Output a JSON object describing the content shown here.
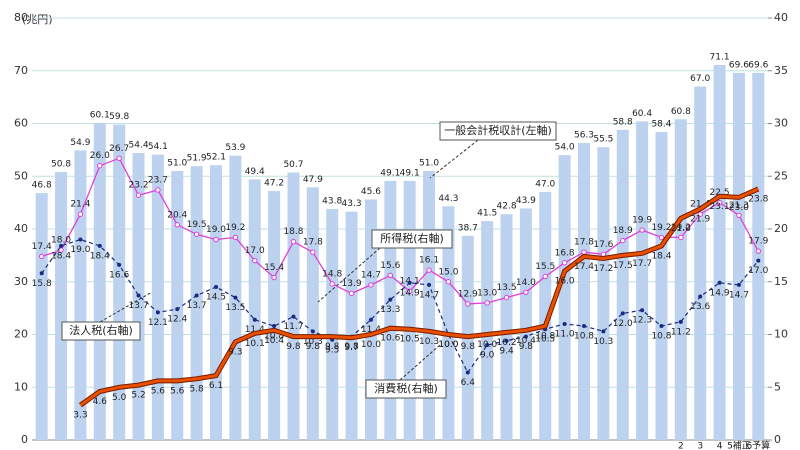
{
  "chart_data": {
    "type": "bar-line",
    "y_unit": "(兆円)",
    "categories": [
      null,
      null,
      null,
      null,
      null,
      null,
      null,
      null,
      null,
      null,
      null,
      null,
      null,
      null,
      null,
      null,
      null,
      null,
      null,
      null,
      null,
      null,
      null,
      null,
      null,
      null,
      null,
      null,
      null,
      null,
      null,
      null,
      null,
      "2",
      "3",
      "4",
      "5補正",
      "6予算"
    ],
    "ylim": [
      0,
      80
    ],
    "yticks": [
      0,
      10,
      20,
      30,
      40,
      50,
      60,
      70,
      80
    ],
    "y2lim": [
      0,
      40
    ],
    "y2ticks": [
      0,
      5,
      10,
      15,
      20,
      25,
      30,
      35,
      40
    ],
    "grid": true,
    "annotations": [
      "一般会計税収計(左軸)",
      "所得税(右軸)",
      "法人税(右軸)",
      "消費税(右軸)"
    ],
    "series": [
      {
        "name": "一般会計税収計",
        "type": "bar",
        "color": "#bcd2ee",
        "values": [
          46.8,
          50.8,
          54.9,
          60.1,
          59.8,
          54.4,
          54.1,
          51.0,
          51.9,
          52.1,
          53.9,
          49.4,
          47.2,
          50.7,
          47.9,
          43.8,
          43.3,
          45.6,
          49.1,
          49.1,
          51.0,
          44.3,
          38.7,
          41.5,
          42.8,
          43.9,
          47.0,
          54.0,
          56.3,
          55.5,
          58.8,
          60.4,
          58.4,
          60.8,
          67.0,
          71.1,
          69.6,
          69.6
        ],
        "value_labels": [
          "46.8",
          "50.8",
          "54.9",
          "60.1",
          "59.8",
          "54.4",
          "54.1",
          "51.0",
          "51.9",
          "52.1",
          "53.9",
          "49.4",
          "47.2",
          "50.7",
          "47.9",
          "43.8",
          "43.3",
          "45.6",
          "49.1",
          "49.1",
          "51.0",
          "44.3",
          "38.7",
          "41.5",
          "42.8",
          "43.9",
          "47.0",
          "54.0",
          "56.3",
          "55.5",
          "58.8",
          "60.4",
          "58.4",
          "60.8",
          "67.0",
          "71.1",
          "69.6",
          "69.6"
        ]
      },
      {
        "name": "所得税",
        "type": "line",
        "axis": "y2",
        "color": "#e040d8",
        "values": [
          17.4,
          18.0,
          21.4,
          26.0,
          26.7,
          23.2,
          23.7,
          20.4,
          19.5,
          19.0,
          19.2,
          17.0,
          15.4,
          18.8,
          17.8,
          14.8,
          13.9,
          14.7,
          15.6,
          14.1,
          16.1,
          15.0,
          12.9,
          13.0,
          13.5,
          14.0,
          15.5,
          16.8,
          17.8,
          17.6,
          18.9,
          19.9,
          19.2,
          19.2,
          21.4,
          22.5,
          21.3,
          17.9
        ],
        "value_labels": [
          "17.4",
          "18.0",
          "21.4",
          "26.0",
          "26.7",
          "23.2",
          "23.7",
          "20.4",
          "19.5",
          "19.0",
          "19.2",
          "17.0",
          "15.4",
          "18.8",
          "17.8",
          "14.8",
          "13.9",
          "14.7",
          "15.6",
          "14.1",
          "16.1",
          "15.0",
          "12.9",
          "13.0",
          "13.5",
          "14.0",
          "15.5",
          "16.8",
          "17.8",
          "17.6",
          "18.9",
          "19.9",
          "19.2",
          "19.2",
          "21.4",
          "22.5",
          "21.3",
          "17.9"
        ]
      },
      {
        "name": "法人税",
        "type": "line",
        "axis": "y2",
        "color": "#1a2a80",
        "values": [
          15.8,
          18.4,
          19.0,
          18.4,
          16.6,
          13.7,
          12.1,
          12.4,
          13.7,
          14.5,
          13.5,
          11.4,
          10.8,
          11.7,
          10.3,
          9.5,
          9.8,
          11.4,
          13.3,
          14.9,
          14.7,
          10.0,
          6.4,
          9.0,
          9.4,
          9.8,
          10.5,
          11.0,
          10.8,
          10.3,
          12.0,
          12.3,
          10.8,
          11.2,
          13.6,
          14.9,
          14.7,
          17.0
        ],
        "value_labels": [
          "15.8",
          "18.4",
          "19.0",
          "18.4",
          "16.6",
          "13.7",
          "12.1",
          "12.4",
          "13.7",
          "14.5",
          "13.5",
          "11.4",
          "10.8",
          "11.7",
          "10.3",
          "9.5",
          "9.8",
          "11.4",
          "13.3",
          "14.9",
          "14.7",
          "10.0",
          "6.4",
          "9.0",
          "9.4",
          "9.8",
          "10.5",
          "11.0",
          "10.8",
          "10.3",
          "12.0",
          "12.3",
          "10.8",
          "11.2",
          "13.6",
          "14.9",
          "14.7",
          "17.0"
        ]
      },
      {
        "name": "消費税",
        "type": "line",
        "axis": "y2",
        "color": "#e85000",
        "values": [
          null,
          null,
          3.3,
          4.6,
          5.0,
          5.2,
          5.6,
          5.6,
          5.8,
          6.1,
          9.3,
          10.1,
          10.4,
          9.8,
          9.8,
          9.8,
          9.7,
          10.0,
          10.6,
          10.5,
          10.3,
          10.0,
          9.8,
          10.0,
          10.2,
          10.4,
          10.8,
          16.0,
          17.4,
          17.2,
          17.5,
          17.7,
          18.4,
          21.0,
          21.9,
          23.1,
          23.0,
          23.8
        ],
        "value_labels": [
          null,
          null,
          "3.3",
          "4.6",
          "5.0",
          "5.2",
          "5.6",
          "5.6",
          "5.8",
          "6.1",
          "9.3",
          "10.1",
          "10.4",
          "9.8",
          "9.8",
          "9.8",
          "9.7",
          "10.0",
          "10.6",
          "10.5",
          "10.3",
          "10.0",
          "9.8",
          "10.0",
          "10.2",
          "10.4",
          "10.8",
          "16.0",
          "17.4",
          "17.2",
          "17.5",
          "17.7",
          "18.4",
          "21.0",
          "21.9",
          "23.1",
          "23.0",
          "23.8"
        ]
      }
    ]
  }
}
